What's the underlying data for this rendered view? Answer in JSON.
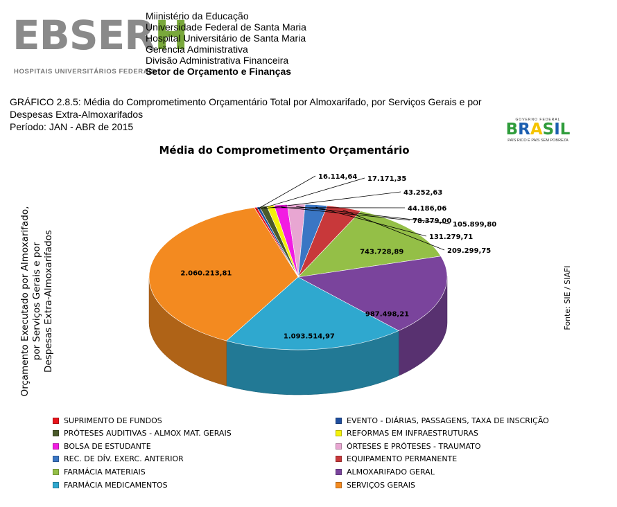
{
  "header": {
    "logo": {
      "main": "EBSER",
      "highlight": "H",
      "sub": "HOSPITAIS UNIVERSITÁRIOS FEDERAIS"
    },
    "institution_lines": [
      "Miinistério da Educação",
      "Universidade Federal de Santa Maria",
      "Hospital Universitário de Santa Maria",
      "Gerência Administrativa",
      "Divisão Administrativa Financeira",
      "Setor de Orçamento e Finanças"
    ],
    "caption_line1": "GRÁFICO 2.8.5: Média do Comprometimento Orçamentário Total por Almoxarifado, por Serviços Gerais e por",
    "caption_line2": "Despesas Extra-Almoxarifados",
    "caption_line3": "Período: JAN - ABR de 2015",
    "brasil_logo": {
      "top": "GOVERNO FEDERAL",
      "main": "BRASIL",
      "tagline": "PAÍS RICO É PAÍS SEM POBREZA"
    }
  },
  "chart_data": {
    "type": "pie",
    "title": "Média do Comprometimento Orçamentário",
    "ylabel": "Orçamento Executado por Almoxarifado, por Serviços Gerais e por Despesas Extra-Almoxarifados",
    "source": "Fonte: SIE / SIAFI",
    "legend_position": "bottom",
    "slices": [
      {
        "name": "SUPRIMENTO DE FUNDOS",
        "value": 16114.64,
        "label": "16.114,64",
        "color": "#e8141b"
      },
      {
        "name": "EVENTO - DIÁRIAS, PASSAGENS, TAXA DE INSCRIÇÃO",
        "value": 17171.35,
        "label": "17.171,35",
        "color": "#1f4e9e"
      },
      {
        "name": "PRÓTESES AUDITIVAS - ALMOX MAT. GERAIS",
        "value": 43252.63,
        "label": "43.252,63",
        "color": "#4a5a2a"
      },
      {
        "name": "REFORMAS EM INFRAESTRUTURAS",
        "value": 44186.06,
        "label": "44.186,06",
        "color": "#f4f20b"
      },
      {
        "name": "BOLSA DE ESTUDANTE",
        "value": 78379.0,
        "label": "78.379,00",
        "color": "#f21ce2"
      },
      {
        "name": "ÓRTESES E PRÓTESES - TRAUMATO",
        "value": 105899.8,
        "label": "105.899,80",
        "color": "#e8a6d2"
      },
      {
        "name": "REC. DE DÍV. EXERC. ANTERIOR",
        "value": 131279.71,
        "label": "131.279,71",
        "color": "#3a76c4"
      },
      {
        "name": "EQUIPAMENTO PERMANENTE",
        "value": 209299.75,
        "label": "209.299,75",
        "color": "#c8383a"
      },
      {
        "name": "FARMÁCIA MATERIAIS",
        "value": 743728.89,
        "label": "743.728,89",
        "color": "#94bf47"
      },
      {
        "name": "ALMOXARIFADO GERAL",
        "value": 987498.21,
        "label": "987.498,21",
        "color": "#7a449c"
      },
      {
        "name": "FARMÁCIA MEDICAMENTOS",
        "value": 1093514.97,
        "label": "1.093.514,97",
        "color": "#2fa8cf"
      },
      {
        "name": "SERVIÇOS GERAIS",
        "value": 2060213.81,
        "label": "2.060.213,81",
        "color": "#f38a20"
      }
    ],
    "legend_order": [
      "SUPRIMENTO DE FUNDOS",
      "EVENTO - DIÁRIAS, PASSAGENS, TAXA DE INSCRIÇÃO",
      "PRÓTESES AUDITIVAS - ALMOX MAT. GERAIS",
      "REFORMAS EM INFRAESTRUTURAS",
      "BOLSA DE ESTUDANTE",
      "ÓRTESES E PRÓTESES - TRAUMATO",
      "REC. DE DÍV. EXERC. ANTERIOR",
      "EQUIPAMENTO PERMANENTE",
      "FARMÁCIA MATERIAIS",
      "ALMOXARIFADO GERAL",
      "FARMÁCIA MEDICAMENTOS",
      "SERVIÇOS GERAIS"
    ]
  }
}
